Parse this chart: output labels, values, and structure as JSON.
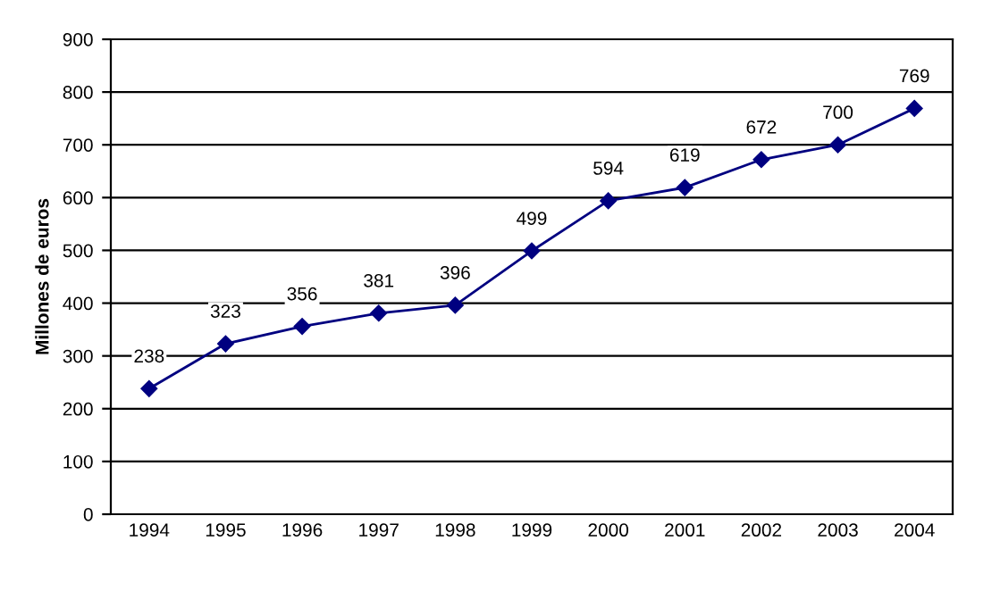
{
  "chart_data": {
    "type": "line",
    "ylabel": "Millones de euros",
    "categories": [
      "1994",
      "1995",
      "1996",
      "1997",
      "1998",
      "1999",
      "2000",
      "2001",
      "2002",
      "2003",
      "2004"
    ],
    "series": [
      {
        "color": "#000080",
        "values": [
          238,
          323,
          356,
          381,
          396,
          499,
          594,
          619,
          672,
          700,
          769
        ]
      }
    ],
    "ylim": [
      0,
      900
    ],
    "yticks": [
      0,
      100,
      200,
      300,
      400,
      500,
      600,
      700,
      800,
      900
    ],
    "grid": "y",
    "marker": "diamond",
    "line_style": "solid",
    "data_labels": true,
    "legend": false
  }
}
